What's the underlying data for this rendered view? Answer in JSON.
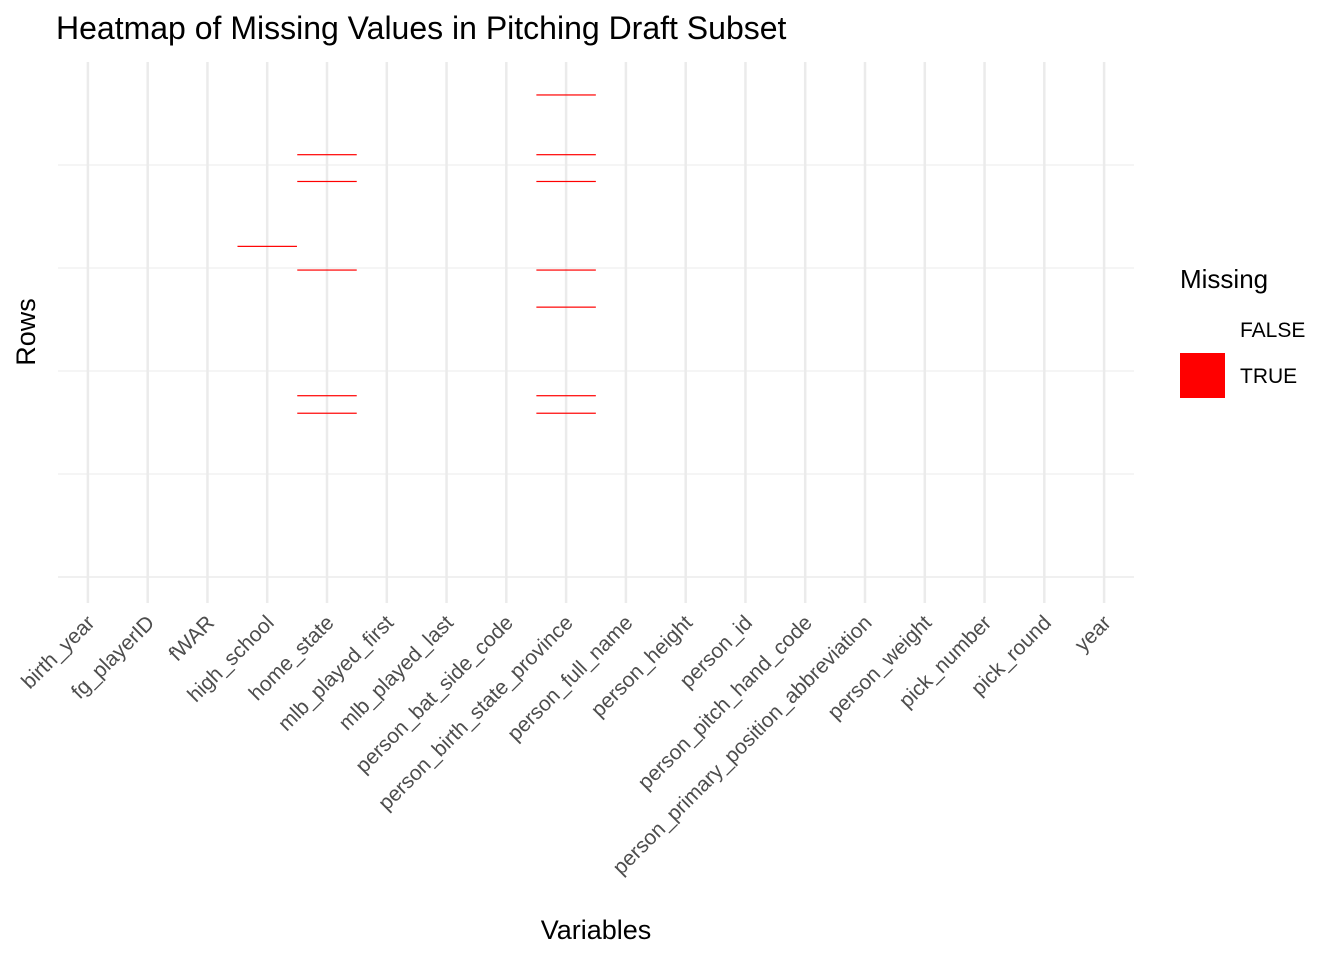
{
  "chart_data": {
    "type": "heatmap",
    "title": "Heatmap of Missing Values in Pitching Draft Subset",
    "xlabel": "Variables",
    "ylabel": "Rows",
    "categories": [
      "birth_year",
      "fg_playerID",
      "fWAR",
      "high_school",
      "home_state",
      "mlb_played_first",
      "mlb_played_last",
      "person_bat_side_code",
      "person_birth_state_province",
      "person_full_name",
      "person_height",
      "person_id",
      "person_pitch_hand_code",
      "person_primary_position_abbreviation",
      "person_weight",
      "pick_number",
      "pick_round",
      "year"
    ],
    "row_range": [
      0,
      500
    ],
    "missing_cells": [
      {
        "variable": "person_birth_state_province",
        "row": 468
      },
      {
        "variable": "home_state",
        "row": 410
      },
      {
        "variable": "person_birth_state_province",
        "row": 410
      },
      {
        "variable": "home_state",
        "row": 384
      },
      {
        "variable": "person_birth_state_province",
        "row": 384
      },
      {
        "variable": "high_school",
        "row": 321
      },
      {
        "variable": "home_state",
        "row": 298
      },
      {
        "variable": "person_birth_state_province",
        "row": 298
      },
      {
        "variable": "person_birth_state_province",
        "row": 262
      },
      {
        "variable": "home_state",
        "row": 176
      },
      {
        "variable": "person_birth_state_province",
        "row": 176
      },
      {
        "variable": "home_state",
        "row": 159
      },
      {
        "variable": "person_birth_state_province",
        "row": 159
      }
    ],
    "legend": {
      "title": "Missing",
      "position": "right",
      "entries": [
        {
          "label": "FALSE",
          "color": "#ffffff"
        },
        {
          "label": "TRUE",
          "color": "#ff0000"
        }
      ]
    },
    "grid": true,
    "colors": {
      "missing": "#ff0000",
      "present": "#ffffff",
      "grid": "#ebebeb"
    }
  }
}
